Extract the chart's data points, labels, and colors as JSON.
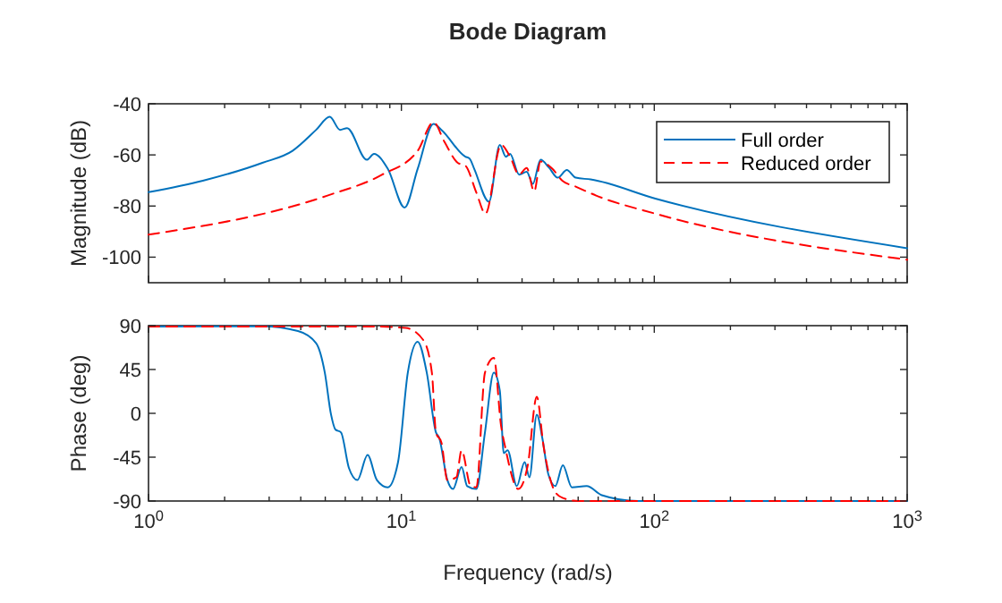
{
  "chart_data": [
    {
      "type": "line",
      "title": "Bode Diagram",
      "ylabel": "Magnitude (dB)",
      "log": "x",
      "grid": false,
      "legend": "top right",
      "tick_labels": "y",
      "xlim": [
        1,
        1000
      ],
      "ylim": [
        -110,
        -40
      ],
      "yticks": [
        -100,
        -80,
        -60,
        -40
      ],
      "xticks": [
        {
          "value": 1,
          "label": null
        },
        {
          "value": 2,
          "label": null
        },
        {
          "value": 3,
          "label": null
        },
        {
          "value": 4,
          "label": null
        },
        {
          "value": 5,
          "label": null
        },
        {
          "value": 6,
          "label": null
        },
        {
          "value": 7,
          "label": null
        },
        {
          "value": 8,
          "label": null
        },
        {
          "value": 9,
          "label": null
        },
        {
          "value": 10,
          "label": null
        },
        {
          "value": 20,
          "label": null
        },
        {
          "value": 30,
          "label": null
        },
        {
          "value": 40,
          "label": null
        },
        {
          "value": 50,
          "label": null
        },
        {
          "value": 60,
          "label": null
        },
        {
          "value": 70,
          "label": null
        },
        {
          "value": 80,
          "label": null
        },
        {
          "value": 90,
          "label": null
        },
        {
          "value": 100,
          "label": null
        },
        {
          "value": 200,
          "label": null
        },
        {
          "value": 300,
          "label": null
        },
        {
          "value": 400,
          "label": null
        },
        {
          "value": 500,
          "label": null
        },
        {
          "value": 600,
          "label": null
        },
        {
          "value": 700,
          "label": null
        },
        {
          "value": 800,
          "label": null
        },
        {
          "value": 900,
          "label": null
        },
        {
          "value": 1000,
          "label": null
        }
      ],
      "series": [
        {
          "name": "Full order",
          "color": "#0072bd",
          "line_style": "solid",
          "x": [
            1,
            1.64,
            2.82,
            3.71,
            4.6,
            5.21,
            5.72,
            6.1,
            7.3,
            7.79,
            8.83,
            10.3,
            11.6,
            13.4,
            14.4,
            17.9,
            18.6,
            19.4,
            22.2,
            24.5,
            25.9,
            26.9,
            29.2,
            31.3,
            33.1,
            35.5,
            38.3,
            41.5,
            45.1,
            48.9,
            56,
            101,
            1000
          ],
          "values": [
            -74.6,
            -70.1,
            -63.1,
            -58.4,
            -50.2,
            -45.1,
            -50.2,
            -49.5,
            -61.9,
            -59.6,
            -65.4,
            -80.6,
            -65.4,
            -47.9,
            -50.2,
            -60.7,
            -61.4,
            -65.4,
            -78.3,
            -56.1,
            -60.7,
            -59.6,
            -67.7,
            -66.6,
            -71.3,
            -61.9,
            -64.9,
            -68.9,
            -65.9,
            -68.9,
            -69.6,
            -77.1,
            -96.5
          ]
        },
        {
          "name": "Reduced order",
          "color": "#ff0000",
          "line_style": "dashed",
          "x": [
            1,
            5.1,
            8.4,
            11.6,
            13.4,
            14.8,
            16.7,
            17.9,
            19.8,
            21.5,
            24.8,
            26.9,
            29.2,
            31.3,
            33.5,
            35.5,
            39.5,
            43.3,
            48.9,
            58.9,
            101,
            1000
          ],
          "values": [
            -91.2,
            -75.9,
            -67.7,
            -58.4,
            -47.2,
            -54.9,
            -63.1,
            -64.2,
            -74.8,
            -83,
            -56.1,
            -60.7,
            -67.7,
            -65.1,
            -74.3,
            -62.6,
            -65.4,
            -70.1,
            -72.4,
            -75.9,
            -83,
            -101
          ]
        }
      ]
    },
    {
      "type": "line",
      "xlabel": "Frequency (rad/s)",
      "ylabel": "Phase (deg)",
      "log": "x",
      "grid": false,
      "xlim": [
        1,
        1000
      ],
      "ylim": [
        -90,
        90
      ],
      "yticks": [
        -90,
        -45,
        0,
        45,
        90
      ],
      "xticks": [
        {
          "value": 1,
          "label": "10$^{0}$"
        },
        {
          "value": 2,
          "label": null
        },
        {
          "value": 3,
          "label": null
        },
        {
          "value": 4,
          "label": null
        },
        {
          "value": 5,
          "label": null
        },
        {
          "value": 6,
          "label": null
        },
        {
          "value": 7,
          "label": null
        },
        {
          "value": 8,
          "label": null
        },
        {
          "value": 9,
          "label": null
        },
        {
          "value": 10,
          "label": "10$^{1}$"
        },
        {
          "value": 20,
          "label": null
        },
        {
          "value": 30,
          "label": null
        },
        {
          "value": 40,
          "label": null
        },
        {
          "value": 50,
          "label": null
        },
        {
          "value": 60,
          "label": null
        },
        {
          "value": 70,
          "label": null
        },
        {
          "value": 80,
          "label": null
        },
        {
          "value": 90,
          "label": null
        },
        {
          "value": 100,
          "label": "10$^{2}$"
        },
        {
          "value": 200,
          "label": null
        },
        {
          "value": 300,
          "label": null
        },
        {
          "value": 400,
          "label": null
        },
        {
          "value": 500,
          "label": null
        },
        {
          "value": 600,
          "label": null
        },
        {
          "value": 700,
          "label": null
        },
        {
          "value": 800,
          "label": null
        },
        {
          "value": 900,
          "label": null
        },
        {
          "value": 1000,
          "label": "10$^{3}$"
        }
      ],
      "series": [
        {
          "color": "#0072bd",
          "line_style": "solid",
          "x": [
            1,
            2.82,
            3.9,
            4.6,
            4.98,
            5.27,
            5.48,
            5.77,
            6.2,
            6.7,
            7.35,
            8.0,
            8.83,
            9.7,
            10.6,
            11.6,
            12.6,
            13.7,
            14.1,
            15.2,
            16.0,
            17.3,
            18.2,
            19.8,
            21.4,
            23.2,
            24.5,
            25.4,
            26.3,
            28.6,
            30.7,
            32.1,
            34.3,
            36.1,
            38.1,
            40.6,
            43.5,
            47.2,
            54,
            62,
            86,
            1000
          ],
          "values": [
            89,
            89.4,
            84.5,
            72,
            41.7,
            -1.3,
            -16.5,
            -19.6,
            -56,
            -68.5,
            -42.8,
            -68.5,
            -75.9,
            -50,
            41.7,
            73.5,
            41.7,
            -19.6,
            -25,
            -68.5,
            -77.7,
            -55.2,
            -74.7,
            -77.7,
            -19.6,
            41.7,
            23.3,
            -40.9,
            -37.9,
            -74.7,
            -50,
            -65.6,
            -1.3,
            -25.7,
            -62.5,
            -74.7,
            -53.3,
            -75.9,
            -74.7,
            -84,
            -90,
            -90
          ]
        },
        {
          "color": "#ff0000",
          "line_style": "dashed",
          "x": [
            1,
            8,
            10.4,
            12.2,
            13.2,
            13.7,
            14.4,
            15.2,
            16.5,
            17.3,
            18.8,
            19.8,
            21.4,
            23.2,
            24.8,
            25.7,
            29,
            31.6,
            34.3,
            36.5,
            40.3,
            43.5,
            50,
            1000
          ],
          "values": [
            89,
            89,
            87.6,
            75.3,
            41.7,
            -19.6,
            -30,
            -68.5,
            -65.6,
            -38,
            -74.7,
            -75.9,
            41.7,
            57,
            -13.4,
            -34,
            -77.7,
            -53.3,
            17,
            -34,
            -79.5,
            -86.9,
            -90,
            -90
          ]
        }
      ]
    }
  ]
}
